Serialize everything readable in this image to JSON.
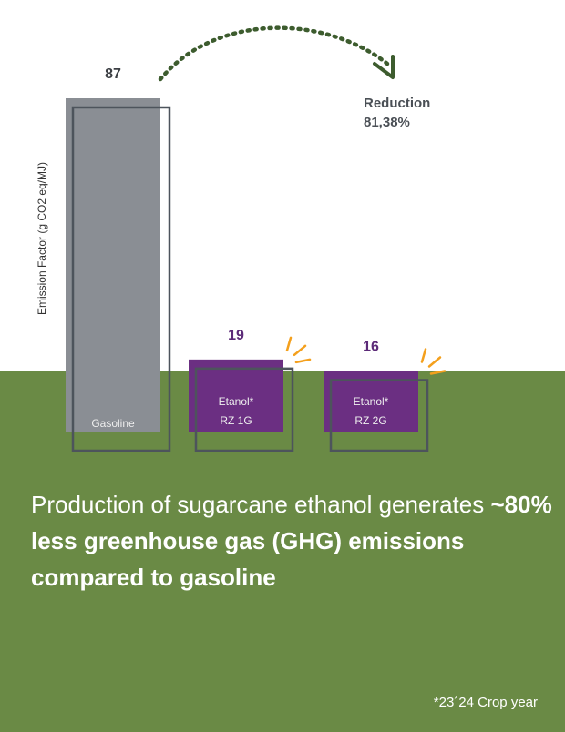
{
  "colors": {
    "ground": "#6a8a45",
    "gasoline": "#8a8e94",
    "ethanol": "#6b2f82",
    "outline": "#4d545c",
    "value_gray": "#3c3f44",
    "value_purple": "#5c2a78",
    "arrow": "#3d5c2e",
    "spark": "#f4a01d"
  },
  "chart_data": {
    "type": "bar",
    "ylabel": "Emission Factor (g CO2 eq/MJ)",
    "ylim": [
      0,
      87
    ],
    "grid": false,
    "legend": "none",
    "categories": [
      [
        "Gasoline"
      ],
      [
        "Etanol*",
        "RZ 1G"
      ],
      [
        "Etanol*",
        "RZ 2G"
      ]
    ],
    "values": [
      87,
      19,
      16
    ],
    "value_labels": [
      "87",
      "19",
      "16"
    ],
    "annotation": {
      "title": "Reduction",
      "value": "81,38%"
    }
  },
  "headline": {
    "light": "Production of sugarcane ethanol generates ",
    "bold": "~80% less greenhouse gas (GHG) emissions compared to gasoline"
  },
  "footnote": "*23´24 Crop year"
}
